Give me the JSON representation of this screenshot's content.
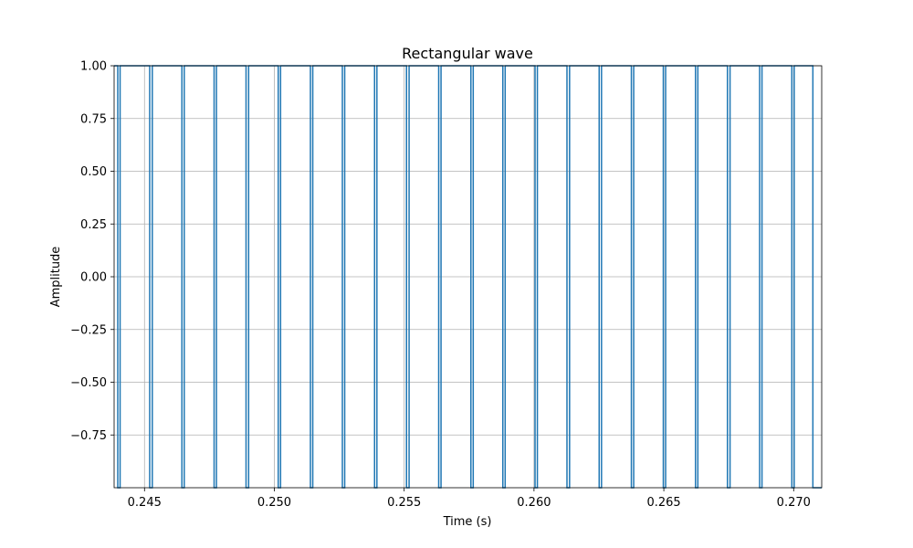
{
  "chart_data": {
    "type": "line",
    "title": "Rectangular wave",
    "xlabel": "Time (s)",
    "ylabel": "Amplitude",
    "xlim": [
      0.24383,
      0.27108
    ],
    "ylim": [
      -1.0,
      1.0
    ],
    "grid": true,
    "xticks": [
      0.245,
      0.25,
      0.255,
      0.26,
      0.265,
      0.27
    ],
    "xtick_labels": [
      "0.245",
      "0.250",
      "0.255",
      "0.260",
      "0.265",
      "0.270"
    ],
    "yticks": [
      1.0,
      0.75,
      0.5,
      0.25,
      0.0,
      -0.25,
      -0.5,
      -0.75
    ],
    "ytick_labels": [
      "1.00",
      "0.75",
      "0.50",
      "0.25",
      "0.00",
      "−0.25",
      "−0.50",
      "−0.75"
    ],
    "series": [
      {
        "color": "#1f77b4",
        "high": 1.0,
        "low": -1.0,
        "initial_level": 1.0,
        "transitions_x": [
          0.24397,
          0.24406,
          0.2452,
          0.2453,
          0.24644,
          0.24653,
          0.24768,
          0.24777,
          0.24891,
          0.24901,
          0.25015,
          0.25024,
          0.25139,
          0.25148,
          0.25262,
          0.25271,
          0.25386,
          0.25395,
          0.25509,
          0.25519,
          0.25633,
          0.25642,
          0.25757,
          0.25766,
          0.2588,
          0.25889,
          0.26004,
          0.26013,
          0.26127,
          0.26137,
          0.26251,
          0.2626,
          0.26375,
          0.26384,
          0.26498,
          0.26507,
          0.26622,
          0.26631,
          0.26745,
          0.26755,
          0.26869,
          0.26878,
          0.26993,
          0.27002,
          0.27074
        ]
      }
    ]
  }
}
